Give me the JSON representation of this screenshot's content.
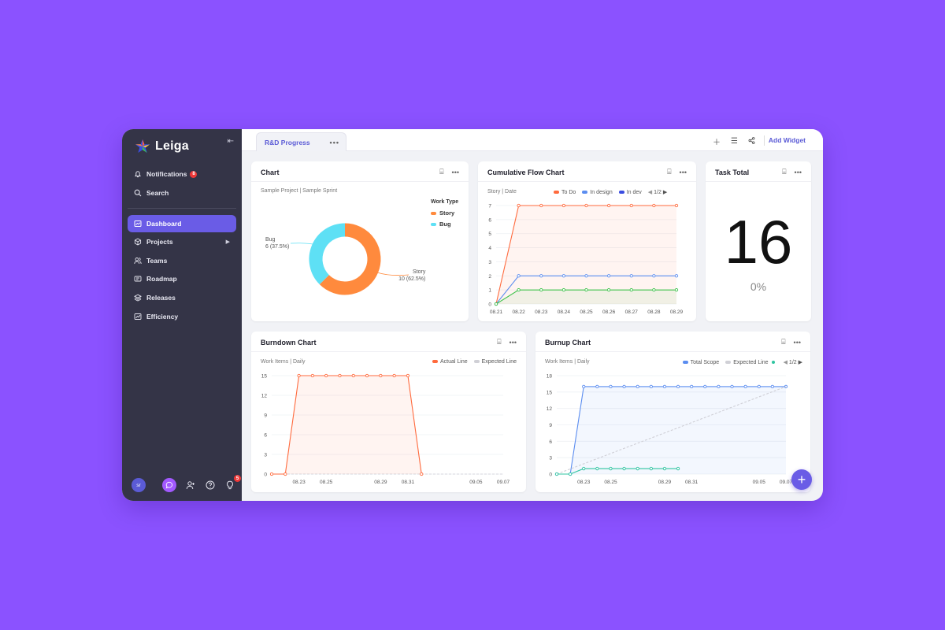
{
  "brand": {
    "name": "Leiga"
  },
  "sidebar": {
    "items": [
      {
        "label": "Notifications",
        "badge": "8"
      },
      {
        "label": "Search"
      },
      {
        "label": "Dashboard"
      },
      {
        "label": "Projects"
      },
      {
        "label": "Teams"
      },
      {
        "label": "Roadmap"
      },
      {
        "label": "Releases"
      },
      {
        "label": "Efficiency"
      }
    ],
    "avatar": "sr",
    "bottom_badge": "5"
  },
  "tabbar": {
    "tab": "R&D Progress",
    "add_widget": "Add Widget"
  },
  "widgets": {
    "pie": {
      "title": "Chart",
      "subtitle": "Sample Project | Sample Sprint"
    },
    "cfd": {
      "title": "Cumulative Flow Chart",
      "subtitle": "Story | Date",
      "pager": "1/2"
    },
    "total": {
      "title": "Task Total",
      "value": "16",
      "percent": "0%"
    },
    "burndown": {
      "title": "Burndown Chart",
      "subtitle": "Work Items | Daily"
    },
    "burnup": {
      "title": "Burnup Chart",
      "subtitle": "Work Items | Daily",
      "pager": "1/2"
    }
  },
  "colors": {
    "accent": "#6a5ce6",
    "story": "#ff8a3d",
    "bug": "#5ee0f5",
    "todo": "#ff6a3d",
    "design": "#5b8df0",
    "dev": "#3a4de0",
    "done": "#3cc24a",
    "scope": "#5b8df0",
    "teal": "#2fc4a0"
  },
  "chart_data": [
    {
      "type": "pie",
      "legend_title": "Work Type",
      "legend_position": "right",
      "slices": [
        {
          "name": "Story",
          "value": 10,
          "label": "Story",
          "detail": "10 (62.5%)"
        },
        {
          "name": "Bug",
          "value": 6,
          "label": "Bug",
          "detail": "6 (37.5%)"
        }
      ]
    },
    {
      "type": "area",
      "x": [
        "08.21",
        "08.22",
        "08.23",
        "08.24",
        "08.25",
        "08.26",
        "08.27",
        "08.28",
        "08.29"
      ],
      "yticks": [
        "0",
        "1",
        "2",
        "3",
        "4",
        "5",
        "6",
        "7"
      ],
      "ylim": [
        0,
        7
      ],
      "series": [
        {
          "name": "To Do",
          "values": [
            0,
            7,
            7,
            7,
            7,
            7,
            7,
            7,
            7
          ]
        },
        {
          "name": "In design",
          "values": [
            0,
            2,
            2,
            2,
            2,
            2,
            2,
            2,
            2
          ]
        },
        {
          "name": "In dev",
          "values": [
            0,
            1,
            1,
            1,
            1,
            1,
            1,
            1,
            1
          ]
        }
      ]
    },
    {
      "type": "area",
      "x": [
        "08.21",
        "08.22",
        "08.23",
        "08.24",
        "08.25",
        "08.26",
        "08.27",
        "08.28",
        "08.29",
        "08.30",
        "08.31",
        "09.01",
        "09.02",
        "09.03",
        "09.04",
        "09.05",
        "09.06",
        "09.07"
      ],
      "xticks": [
        "08.23",
        "08.25",
        "08.29",
        "08.31",
        "09.05",
        "09.07"
      ],
      "yticks": [
        "0",
        "3",
        "6",
        "9",
        "12",
        "15"
      ],
      "ylim": [
        0,
        15
      ],
      "series": [
        {
          "name": "Actual Line",
          "values": [
            0,
            0,
            15,
            15,
            15,
            15,
            15,
            15,
            15,
            15,
            15,
            0,
            null,
            null,
            null,
            null,
            null,
            null
          ]
        },
        {
          "name": "Expected Line",
          "values": [
            0,
            0,
            0,
            0,
            0,
            0,
            0,
            0,
            0,
            0,
            0,
            0,
            0,
            0,
            0,
            0,
            0,
            0
          ]
        }
      ]
    },
    {
      "type": "line",
      "x": [
        "08.21",
        "08.22",
        "08.23",
        "08.24",
        "08.25",
        "08.26",
        "08.27",
        "08.28",
        "08.29",
        "08.30",
        "08.31",
        "09.01",
        "09.02",
        "09.03",
        "09.04",
        "09.05",
        "09.06",
        "09.07"
      ],
      "xticks": [
        "08.23",
        "08.25",
        "08.29",
        "08.31",
        "09.05",
        "09.07"
      ],
      "yticks": [
        "0",
        "3",
        "6",
        "9",
        "12",
        "15",
        "18"
      ],
      "ylim": [
        0,
        18
      ],
      "series": [
        {
          "name": "Total Scope",
          "values": [
            0,
            0,
            16,
            16,
            16,
            16,
            16,
            16,
            16,
            16,
            16,
            16,
            16,
            16,
            16,
            16,
            16,
            16
          ]
        },
        {
          "name": "Expected Line",
          "values": [
            0,
            0.94,
            1.88,
            2.82,
            3.76,
            4.71,
            5.65,
            6.59,
            7.53,
            8.47,
            9.41,
            10.35,
            11.29,
            12.24,
            13.18,
            14.12,
            15.06,
            16
          ]
        },
        {
          "name": "",
          "values": [
            0,
            0,
            1,
            1,
            1,
            1,
            1,
            1,
            1,
            1,
            null,
            null,
            null,
            null,
            null,
            null,
            null,
            null
          ]
        }
      ]
    }
  ]
}
